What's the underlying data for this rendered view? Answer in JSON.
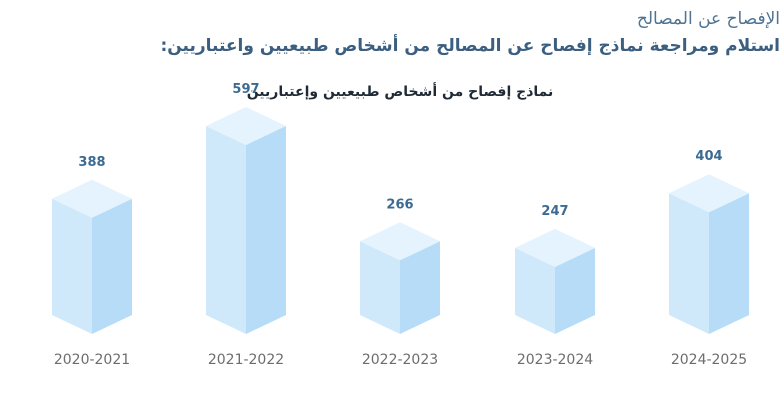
{
  "headings": {
    "section_title": "الإفصاح عن المصالح",
    "subtitle": "استلام ومراجعة نماذج إفصاح عن المصالح من أشخاص طبيعيين واعتباريين:"
  },
  "colors": {
    "front": "#cfe9fb",
    "side": "#b6dcf7",
    "top": "#e4f3fd",
    "value_label": "#3b6a92",
    "axis_label": "#6d6d6d",
    "heading": "#4f7393"
  },
  "chart_data": {
    "type": "bar",
    "title": "نماذج إفصاح من أشخاص طبيعيين وإعتباريين",
    "categories": [
      "2020-2021",
      "2021-2022",
      "2022-2023",
      "2023-2024",
      "2024-2025"
    ],
    "values": [
      388,
      597,
      266,
      247,
      404
    ],
    "xlabel": "",
    "ylabel": "",
    "ylim": [
      0,
      650
    ],
    "grid": false,
    "legend": "none",
    "data_labels": true
  }
}
